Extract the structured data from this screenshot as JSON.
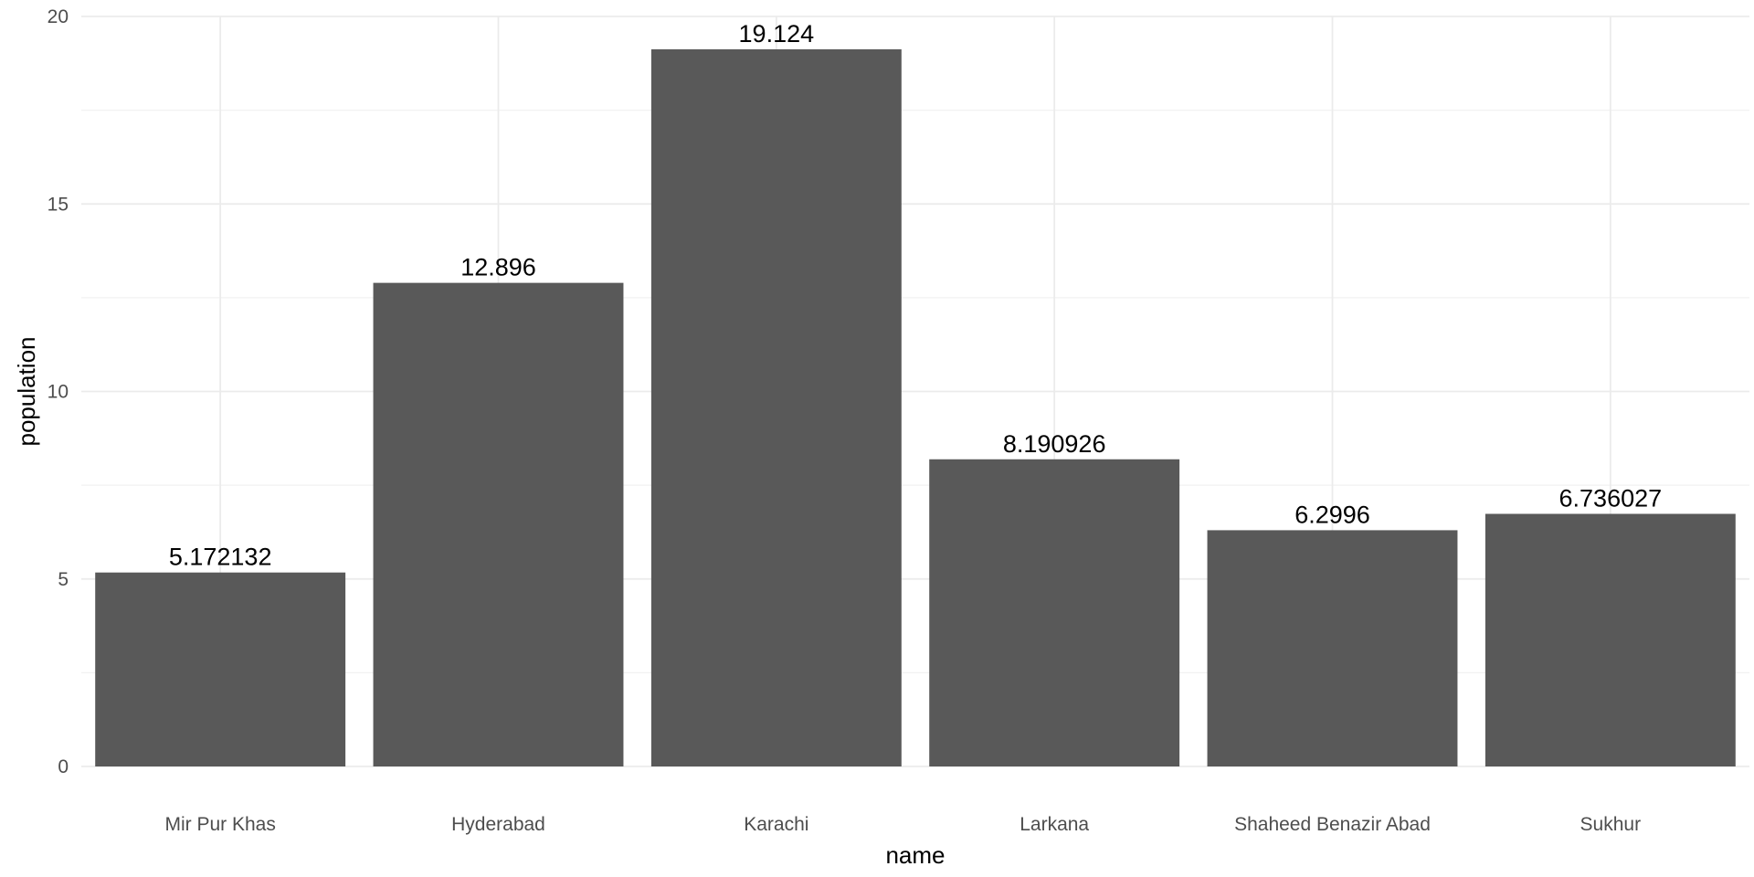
{
  "chart_data": {
    "type": "bar",
    "categories": [
      "Mir Pur Khas",
      "Hyderabad",
      "Karachi",
      "Larkana",
      "Shaheed Benazir Abad",
      "Sukhur"
    ],
    "values": [
      5.172132,
      12.896,
      19.124,
      8.190926,
      6.2996,
      6.736027
    ],
    "data_labels": [
      "5.172132",
      "12.896",
      "19.124",
      "8.190926",
      "6.2996",
      "6.736027"
    ],
    "title": "",
    "xlabel": "name",
    "ylabel": "population",
    "ylim": [
      0,
      20
    ],
    "yticks": [
      0,
      5,
      10,
      15,
      20
    ],
    "grid": true,
    "legend": "none",
    "colors": {
      "bar": "#595959",
      "grid_major": "#ebebeb",
      "grid_minor": "#f2f2f2",
      "background": "#ffffff"
    }
  }
}
